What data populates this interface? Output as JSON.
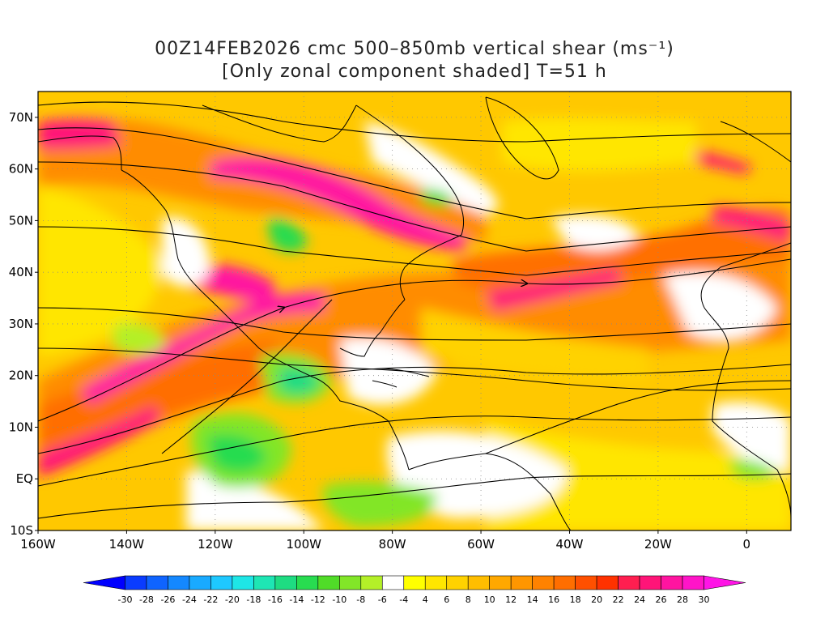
{
  "title": {
    "line1": "00Z14FEB2026 cmc 500–850mb vertical shear (ms⁻¹)",
    "line2": "[Only zonal component shaded] T=51 h"
  },
  "map": {
    "lon_range": [
      -160,
      10
    ],
    "lat_range": [
      -10,
      75
    ],
    "lat_ticks": [
      {
        "lat": 70,
        "label": "70N"
      },
      {
        "lat": 60,
        "label": "60N"
      },
      {
        "lat": 50,
        "label": "50N"
      },
      {
        "lat": 40,
        "label": "40N"
      },
      {
        "lat": 30,
        "label": "30N"
      },
      {
        "lat": 20,
        "label": "20N"
      },
      {
        "lat": 10,
        "label": "10N"
      },
      {
        "lat": 0,
        "label": "EQ"
      },
      {
        "lat": -10,
        "label": "10S"
      }
    ],
    "lon_ticks": [
      {
        "lon": -160,
        "label": "160W"
      },
      {
        "lon": -140,
        "label": "140W"
      },
      {
        "lon": -120,
        "label": "120W"
      },
      {
        "lon": -100,
        "label": "100W"
      },
      {
        "lon": -80,
        "label": "80W"
      },
      {
        "lon": -60,
        "label": "60W"
      },
      {
        "lon": -40,
        "label": "40W"
      },
      {
        "lon": -20,
        "label": "20W"
      },
      {
        "lon": 0,
        "label": "0"
      }
    ]
  },
  "colorbar": {
    "labels": [
      "-30",
      "-28",
      "-26",
      "-24",
      "-22",
      "-20",
      "-18",
      "-16",
      "-14",
      "-12",
      "-10",
      "-8",
      "-6",
      "-4",
      "4",
      "6",
      "8",
      "10",
      "12",
      "14",
      "16",
      "18",
      "20",
      "22",
      "24",
      "26",
      "28",
      "30"
    ],
    "colors": [
      "#0000ff",
      "#0a3cff",
      "#0f64ff",
      "#1488ff",
      "#19aaff",
      "#1ec8ff",
      "#1ee6e6",
      "#1ee6b4",
      "#1edc82",
      "#28dc50",
      "#50dc28",
      "#82e628",
      "#b4f028",
      "#ffffff",
      "#ffff00",
      "#ffe600",
      "#ffd200",
      "#ffbe00",
      "#ffa800",
      "#ff9600",
      "#ff8200",
      "#ff6e00",
      "#ff5000",
      "#ff3200",
      "#ff1e50",
      "#ff1478",
      "#ff14a0",
      "#ff14c8",
      "#ff14e6"
    ]
  }
}
